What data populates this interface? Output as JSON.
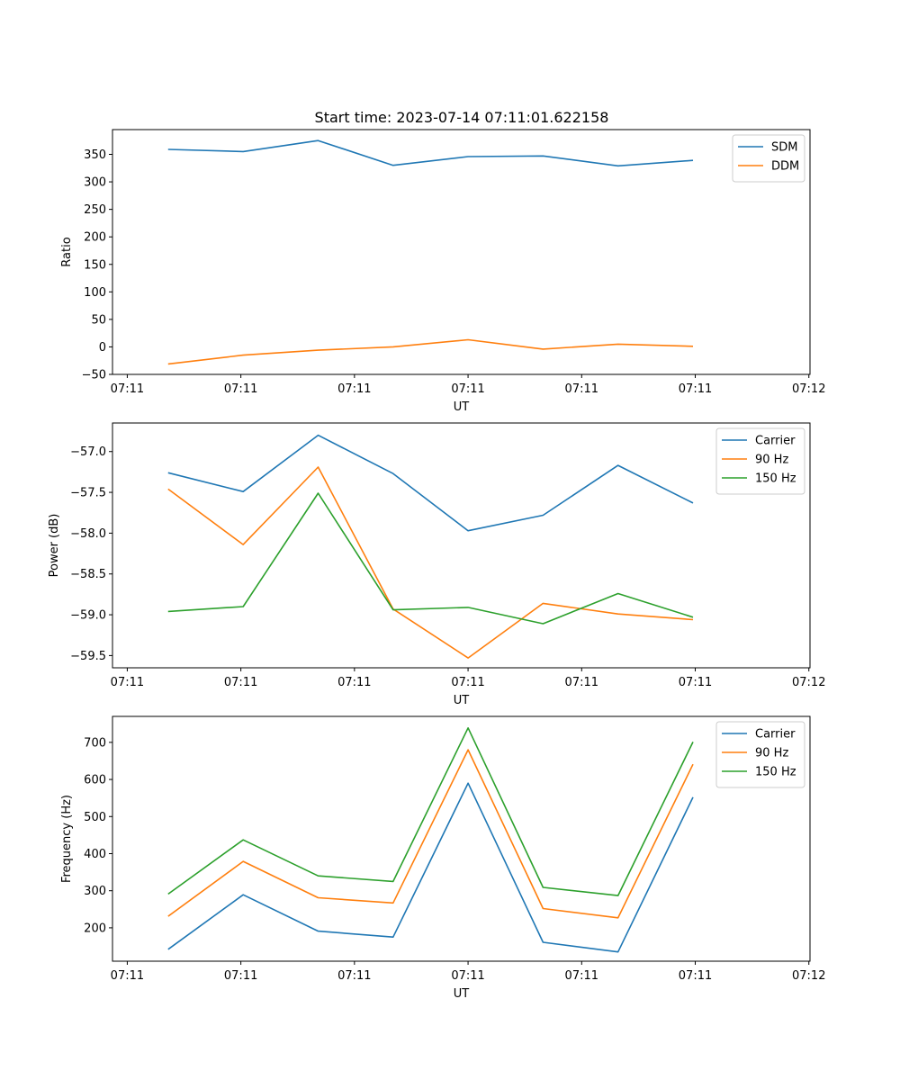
{
  "title": "Start time: 2023-07-14 07:11:01.622158",
  "colors": {
    "c0": "#1f77b4",
    "c1": "#ff7f0e",
    "c2": "#2ca02c"
  },
  "chart_data": [
    {
      "type": "line",
      "title": "Start time: 2023-07-14 07:11:01.622158",
      "xlabel": "UT",
      "ylabel": "Ratio",
      "x_tick_labels": [
        "07:11",
        "07:11",
        "07:11",
        "07:11",
        "07:11",
        "07:11",
        "07:12"
      ],
      "xlim": [
        0,
        6.14
      ],
      "x": [
        0.49,
        1.15,
        1.81,
        2.47,
        3.13,
        3.79,
        4.45,
        5.11
      ],
      "ylim": [
        -50,
        395
      ],
      "yticks": [
        -50,
        0,
        50,
        100,
        150,
        200,
        250,
        300,
        350
      ],
      "legend_position": "top-right",
      "series": [
        {
          "name": "SDM",
          "color": "#1f77b4",
          "values": [
            359,
            355,
            375,
            330,
            346,
            347,
            329,
            339
          ]
        },
        {
          "name": "DDM",
          "color": "#ff7f0e",
          "values": [
            -31,
            -15,
            -6,
            0,
            13,
            -4,
            5,
            1
          ]
        }
      ]
    },
    {
      "type": "line",
      "xlabel": "UT",
      "ylabel": "Power (dB)",
      "x_tick_labels": [
        "07:11",
        "07:11",
        "07:11",
        "07:11",
        "07:11",
        "07:11",
        "07:12"
      ],
      "xlim": [
        0,
        6.14
      ],
      "x": [
        0.49,
        1.15,
        1.81,
        2.47,
        3.13,
        3.79,
        4.45,
        5.11
      ],
      "ylim": [
        -59.65,
        -56.65
      ],
      "yticks": [
        -59.5,
        -59.0,
        -58.5,
        -58.0,
        -57.5,
        -57.0
      ],
      "tick_format": "minus1",
      "legend_position": "top-right",
      "series": [
        {
          "name": "Carrier",
          "color": "#1f77b4",
          "values": [
            -57.26,
            -57.49,
            -56.8,
            -57.27,
            -57.97,
            -57.78,
            -57.17,
            -57.63
          ]
        },
        {
          "name": "90 Hz",
          "color": "#ff7f0e",
          "values": [
            -57.46,
            -58.14,
            -57.19,
            -58.93,
            -59.53,
            -58.86,
            -58.99,
            -59.06
          ]
        },
        {
          "name": "150 Hz",
          "color": "#2ca02c",
          "values": [
            -58.96,
            -58.9,
            -57.51,
            -58.94,
            -58.91,
            -59.11,
            -58.74,
            -59.03
          ]
        }
      ]
    },
    {
      "type": "line",
      "xlabel": "UT",
      "ylabel": "Frequency (Hz)",
      "x_tick_labels": [
        "07:11",
        "07:11",
        "07:11",
        "07:11",
        "07:11",
        "07:11",
        "07:12"
      ],
      "xlim": [
        0,
        6.14
      ],
      "x": [
        0.49,
        1.15,
        1.81,
        2.47,
        3.13,
        3.79,
        4.45,
        5.11
      ],
      "ylim": [
        110,
        770
      ],
      "yticks": [
        200,
        300,
        400,
        500,
        600,
        700
      ],
      "legend_position": "top-right",
      "series": [
        {
          "name": "Carrier",
          "color": "#1f77b4",
          "values": [
            142,
            289,
            191,
            175,
            590,
            161,
            135,
            552
          ]
        },
        {
          "name": "90 Hz",
          "color": "#ff7f0e",
          "values": [
            231,
            379,
            281,
            267,
            680,
            252,
            227,
            641
          ]
        },
        {
          "name": "150 Hz",
          "color": "#2ca02c",
          "values": [
            291,
            437,
            340,
            325,
            739,
            309,
            287,
            701
          ]
        }
      ]
    }
  ]
}
